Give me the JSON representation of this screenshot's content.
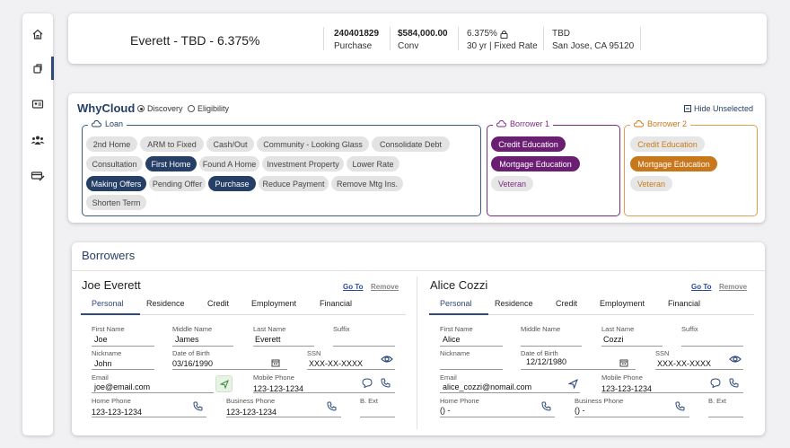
{
  "sidebar": {
    "items": [
      {
        "icon": "home-icon"
      },
      {
        "icon": "loan-icon"
      },
      {
        "icon": "id-card-icon"
      },
      {
        "icon": "people-icon"
      },
      {
        "icon": "payment-icon"
      }
    ]
  },
  "header": {
    "title": "Everett - TBD - 6.375%",
    "loan_number": "240401829",
    "loan_purpose": "Purchase",
    "loan_amount": "$584,000.00",
    "loan_type": "Conv",
    "rate": "6.375%",
    "term": "30 yr | Fixed Rate",
    "address_line1": "TBD",
    "address_line2": "San Jose, CA 95120"
  },
  "whycloud": {
    "title": "WhyCloud",
    "radio_discovery": "Discovery",
    "radio_eligibility": "Eligibility",
    "hide_unselected": "Hide Unselected",
    "loan_group_label": "Loan",
    "borrower1_label": "Borrower 1",
    "borrower2_label": "Borrower 2",
    "loan_chips": [
      "2nd Home",
      "ARM to Fixed",
      "Cash/Out",
      "Community - Looking Glass",
      "Consolidate Debt",
      "Consultation",
      "First Home",
      "Found A Home",
      "Investment Property",
      "Lower Rate",
      "Making Offers",
      "Pending Offer",
      "Purchase",
      "Reduce Payment",
      "Remove Mtg Ins.",
      "Shorten Term"
    ],
    "borrower1_chips": [
      "Credit Education",
      "Mortgage Education",
      "Veteran"
    ],
    "borrower2_chips": [
      "Credit Education",
      "Mortgage Education",
      "Veteran"
    ]
  },
  "borrowers": {
    "title": "Borrowers",
    "goto_label": "Go To",
    "remove_label": "Remove",
    "tabs": [
      "Personal",
      "Residence",
      "Credit",
      "Employment",
      "Financial"
    ],
    "labels": {
      "first_name": "First Name",
      "middle_name": "Middle Name",
      "last_name": "Last Name",
      "suffix": "Suffix",
      "nickname": "Nickname",
      "dob": "Date of Birth",
      "ssn": "SSN",
      "email": "Email",
      "mobile": "Mobile Phone",
      "home": "Home Phone",
      "business": "Business Phone",
      "b_ext": "B. Ext"
    },
    "people": [
      {
        "name": "Joe Everett",
        "first_name": "Joe",
        "middle_name": "James",
        "last_name": "Everett",
        "suffix": "",
        "nickname": "John",
        "dob": "03/16/1990",
        "ssn": "XXX-XX-XXXX",
        "email": "joe@email.com",
        "mobile": "123-123-1234",
        "home": "123-123-1234",
        "business": "123-123-1234",
        "b_ext": ""
      },
      {
        "name": "Alice Cozzi",
        "first_name": "Alice",
        "middle_name": "",
        "last_name": "Cozzi",
        "suffix": "",
        "nickname": "",
        "dob": "12/12/1980",
        "ssn": "XXX-XX-XXXX",
        "email": "alice_cozzi@nomail.com",
        "mobile": "123-123-1234",
        "home": "() -",
        "business": "() -",
        "b_ext": ""
      }
    ]
  },
  "colors": {
    "navy": "#253f67",
    "borrower1": "#6b1f73",
    "borrower2": "#c8771a"
  }
}
